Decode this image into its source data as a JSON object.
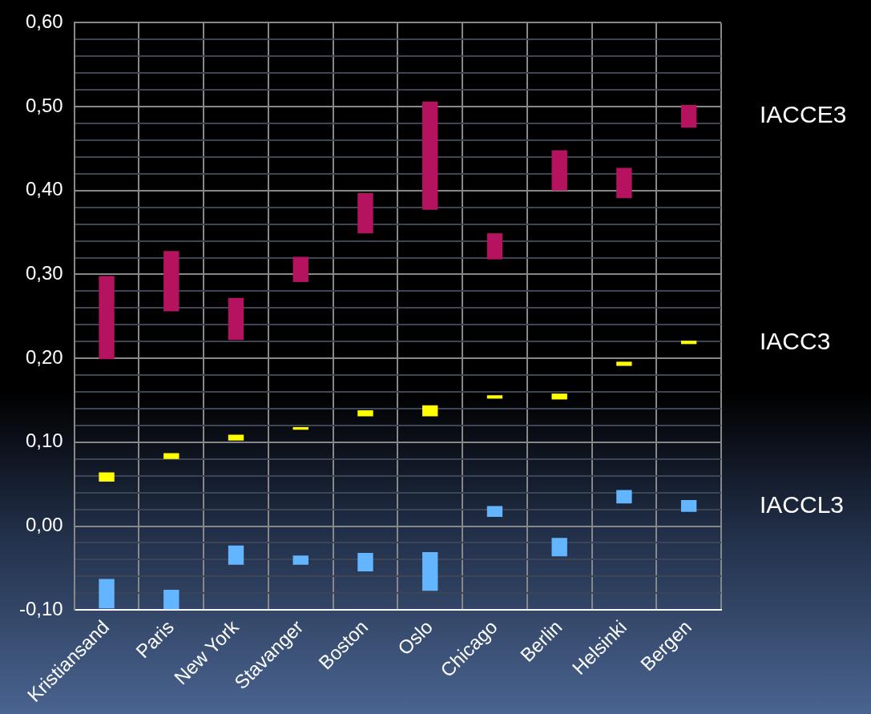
{
  "chart_data": {
    "type": "bar",
    "categories": [
      "Kristiansand",
      "Paris",
      "New York",
      "Stavanger",
      "Boston",
      "Oslo",
      "Chicago",
      "Berlin",
      "Helsinki",
      "Bergen"
    ],
    "series": [
      {
        "name": "IACCE3",
        "color": "#b5135f",
        "base": [
          0.199,
          0.256,
          0.222,
          0.291,
          0.349,
          0.377,
          0.318,
          0.4,
          0.391,
          0.475
        ],
        "values": [
          0.099,
          0.072,
          0.05,
          0.03,
          0.048,
          0.129,
          0.031,
          0.048,
          0.036,
          0.027
        ]
      },
      {
        "name": "IACC3",
        "color": "#ffff00",
        "base": [
          0.053,
          0.08,
          0.102,
          0.115,
          0.131,
          0.131,
          0.152,
          0.151,
          0.191,
          0.217
        ],
        "values": [
          0.011,
          0.007,
          0.007,
          0.003,
          0.007,
          0.013,
          0.004,
          0.007,
          0.005,
          0.004
        ]
      },
      {
        "name": "IACCL3",
        "color": "#63b5ff",
        "base": [
          -0.098,
          -0.099,
          -0.046,
          -0.046,
          -0.054,
          -0.077,
          0.011,
          -0.036,
          0.027,
          0.017
        ],
        "values": [
          0.035,
          0.023,
          0.023,
          0.011,
          0.022,
          0.046,
          0.013,
          0.022,
          0.016,
          0.014
        ]
      }
    ],
    "ylim": [
      -0.1,
      0.6
    ],
    "yticks": [
      {
        "value": -0.1,
        "label": "-0,10"
      },
      {
        "value": -0.08,
        "label": null
      },
      {
        "value": -0.06,
        "label": null
      },
      {
        "value": -0.04,
        "label": null
      },
      {
        "value": -0.02,
        "label": null
      },
      {
        "value": 0,
        "label": "0,00"
      },
      {
        "value": 0.02,
        "label": null
      },
      {
        "value": 0.04,
        "label": null
      },
      {
        "value": 0.06,
        "label": null
      },
      {
        "value": 0.08,
        "label": null
      },
      {
        "value": 0.1,
        "label": "0,10"
      },
      {
        "value": 0.12,
        "label": null
      },
      {
        "value": 0.14,
        "label": null
      },
      {
        "value": 0.16,
        "label": null
      },
      {
        "value": 0.18,
        "label": null
      },
      {
        "value": 0.2,
        "label": "0,20"
      },
      {
        "value": 0.22,
        "label": null
      },
      {
        "value": 0.24,
        "label": null
      },
      {
        "value": 0.26,
        "label": null
      },
      {
        "value": 0.28,
        "label": null
      },
      {
        "value": 0.3,
        "label": "0,30"
      },
      {
        "value": 0.32,
        "label": null
      },
      {
        "value": 0.34,
        "label": null
      },
      {
        "value": 0.36,
        "label": null
      },
      {
        "value": 0.38,
        "label": null
      },
      {
        "value": 0.4,
        "label": "0,40"
      },
      {
        "value": 0.42,
        "label": null
      },
      {
        "value": 0.44,
        "label": null
      },
      {
        "value": 0.46,
        "label": null
      },
      {
        "value": 0.48,
        "label": null
      },
      {
        "value": 0.5,
        "label": "0,50"
      },
      {
        "value": 0.52,
        "label": null
      },
      {
        "value": 0.54,
        "label": null
      },
      {
        "value": 0.56,
        "label": null
      },
      {
        "value": 0.58,
        "label": null
      },
      {
        "value": 0.6,
        "label": "0,60"
      }
    ],
    "grid": true
  }
}
